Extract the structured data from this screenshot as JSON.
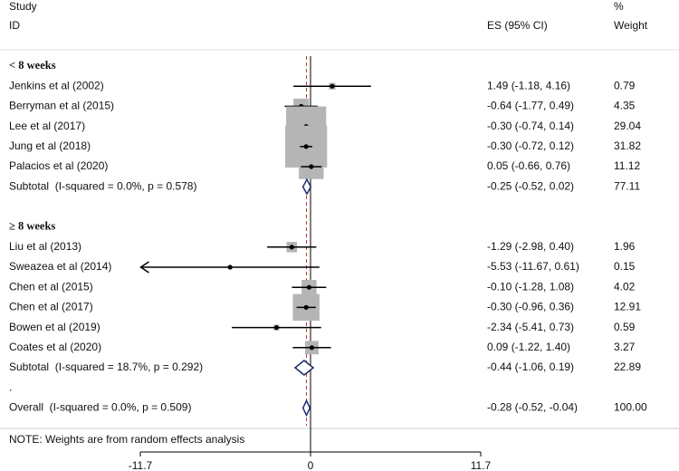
{
  "chart_data": {
    "type": "forest",
    "headers": {
      "study": "Study",
      "id": "ID",
      "es": "ES (95% CI)",
      "pct": "%",
      "weight": "Weight"
    },
    "xlim": [
      -11.7,
      11.7
    ],
    "xticks": [
      -11.7,
      0,
      11.7
    ],
    "colors": {
      "box": "#b5b5b5",
      "diamond": "#1e2a6e",
      "ref_line": "#c0392b",
      "ci": "#000000"
    },
    "groups": [
      {
        "label": "< 8 weeks",
        "studies": [
          {
            "label": "Jenkins et al (2002)",
            "es": 1.49,
            "ci": [
              -1.18,
              4.16
            ],
            "es_label": "1.49 (-1.18, 4.16)",
            "weight": 0.79
          },
          {
            "label": "Berryman et al (2015)",
            "es": -0.64,
            "ci": [
              -1.77,
              0.49
            ],
            "es_label": "-0.64 (-1.77, 0.49)",
            "weight": 4.35
          },
          {
            "label": "Lee et al (2017)",
            "es": -0.3,
            "ci": [
              -0.74,
              0.14
            ],
            "es_label": "-0.30 (-0.74, 0.14)",
            "weight": 29.04
          },
          {
            "label": "Jung et al (2018)",
            "es": -0.3,
            "ci": [
              -0.72,
              0.12
            ],
            "es_label": "-0.30 (-0.72, 0.12)",
            "weight": 31.82
          },
          {
            "label": "Palacios et al (2020)",
            "es": 0.05,
            "ci": [
              -0.66,
              0.76
            ],
            "es_label": "0.05 (-0.66, 0.76)",
            "weight": 11.12
          }
        ],
        "subtotal": {
          "label": "Subtotal  (I-squared = 0.0%, p = 0.578)",
          "es": -0.25,
          "ci": [
            -0.52,
            0.02
          ],
          "es_label": "-0.25 (-0.52, 0.02)",
          "weight": 77.11
        }
      },
      {
        "label": "≥ 8 weeks",
        "studies": [
          {
            "label": "Liu et al (2013)",
            "es": -1.29,
            "ci": [
              -2.98,
              0.4
            ],
            "es_label": "-1.29 (-2.98, 0.40)",
            "weight": 1.96
          },
          {
            "label": "Sweazea et al (2014)",
            "es": -5.53,
            "ci": [
              -11.67,
              0.61
            ],
            "es_label": "-5.53 (-11.67, 0.61)",
            "weight": 0.15,
            "arrow": "left"
          },
          {
            "label": "Chen et al (2015)",
            "es": -0.1,
            "ci": [
              -1.28,
              1.08
            ],
            "es_label": "-0.10 (-1.28, 1.08)",
            "weight": 4.02
          },
          {
            "label": "Chen et al (2017)",
            "es": -0.3,
            "ci": [
              -0.96,
              0.36
            ],
            "es_label": "-0.30 (-0.96, 0.36)",
            "weight": 12.91
          },
          {
            "label": "Bowen et al (2019)",
            "es": -2.34,
            "ci": [
              -5.41,
              0.73
            ],
            "es_label": "-2.34 (-5.41, 0.73)",
            "weight": 0.59
          },
          {
            "label": "Coates et al (2020)",
            "es": 0.09,
            "ci": [
              -1.22,
              1.4
            ],
            "es_label": "0.09 (-1.22, 1.40)",
            "weight": 3.27
          }
        ],
        "subtotal": {
          "label": "Subtotal  (I-squared = 18.7%, p = 0.292)",
          "es": -0.44,
          "ci": [
            -1.06,
            0.19
          ],
          "es_label": "-0.44 (-1.06, 0.19)",
          "weight": 22.89
        }
      }
    ],
    "separator": ".",
    "overall": {
      "label": "Overall  (I-squared = 0.0%, p = 0.509)",
      "es": -0.28,
      "ci": [
        -0.52,
        -0.04
      ],
      "es_label": "-0.28 (-0.52, -0.04)",
      "weight": 100,
      "weight_label": "100.00"
    },
    "note": "NOTE: Weights are from random effects analysis"
  }
}
